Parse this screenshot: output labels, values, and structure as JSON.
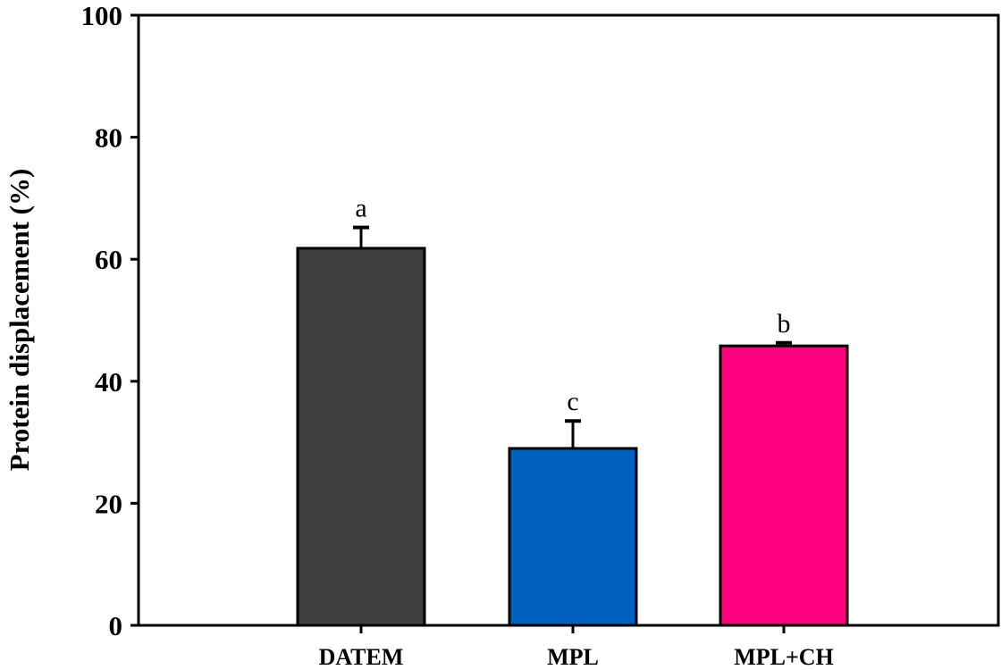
{
  "chart_data": {
    "type": "bar",
    "title": "",
    "xlabel": "",
    "ylabel": "Protein displacement (%)",
    "ylim": [
      0,
      100
    ],
    "yticks": [
      0,
      20,
      40,
      60,
      80,
      100
    ],
    "yticklabels": [
      "0",
      "20",
      "40",
      "60",
      "80",
      "100"
    ],
    "categories": [
      "DATEM",
      "MPL",
      "MPL+CH"
    ],
    "values": [
      61.8,
      29.0,
      45.8
    ],
    "errors": [
      3.4,
      4.5,
      0.5
    ],
    "significance_labels": [
      "a",
      "c",
      "b"
    ],
    "colors": [
      "#404040",
      "#0060C0",
      "#FF007F"
    ],
    "grid": false,
    "legend": "none"
  }
}
